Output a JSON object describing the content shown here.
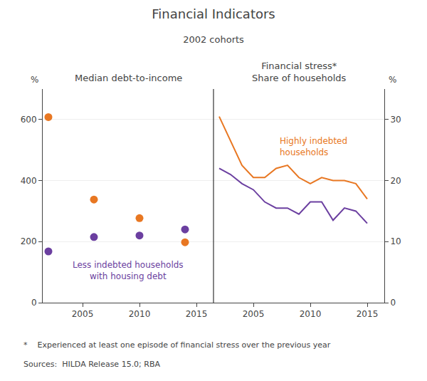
{
  "title": "Financial Indicators",
  "subtitle": "2002 cohorts",
  "annotations": [
    "*    Experienced at least one episode of financial stress over the previous year",
    "Sources:  HILDA Release 15.0; RBA"
  ],
  "chart_data": [
    {
      "type": "scatter",
      "title": "Median debt-to-income",
      "ylabel": "%",
      "x": [
        2002,
        2006,
        2010,
        2014
      ],
      "xlim": [
        2001.5,
        2016.5
      ],
      "xticks": [
        2005,
        2010,
        2015
      ],
      "ylim": [
        0,
        700
      ],
      "yticks": [
        0,
        200,
        400,
        600
      ],
      "grid": true,
      "series": [
        {
          "color": "#E87722",
          "values": [
            608,
            338,
            277,
            198
          ]
        },
        {
          "color": "#6B3FA0",
          "values": [
            168,
            215,
            220,
            240
          ]
        }
      ],
      "annotations": [
        {
          "text": "Less indebted households\nwith housing debt",
          "x": 2009,
          "y": 105,
          "color": "#6B3FA0"
        }
      ]
    },
    {
      "type": "line",
      "title": "Financial stress*\nShare of households",
      "ylabel": "%",
      "x": [
        2002,
        2003,
        2004,
        2005,
        2006,
        2007,
        2008,
        2009,
        2010,
        2011,
        2012,
        2013,
        2014,
        2015
      ],
      "xlim": [
        2001.5,
        2016.5
      ],
      "xticks": [
        2005,
        2010,
        2015
      ],
      "y2lim": [
        0,
        35
      ],
      "y2ticks": [
        0,
        10,
        20,
        30
      ],
      "grid": true,
      "series": [
        {
          "color": "#E87722",
          "axis": "y2",
          "values": [
            30.5,
            26.5,
            22.5,
            20.5,
            20.5,
            22.0,
            22.5,
            20.5,
            19.5,
            20.5,
            20.0,
            20.0,
            19.5,
            17.0
          ]
        },
        {
          "color": "#6B3FA0",
          "axis": "y2",
          "values": [
            22.0,
            21.0,
            19.5,
            18.5,
            16.5,
            15.5,
            15.5,
            14.5,
            16.5,
            16.5,
            13.5,
            15.5,
            15.0,
            13.0
          ]
        }
      ],
      "annotations": [
        {
          "text": "Highly indebted\nhouseholds",
          "x": 2007.2,
          "y": 25.5,
          "color": "#E87722",
          "align": "left"
        }
      ]
    }
  ]
}
